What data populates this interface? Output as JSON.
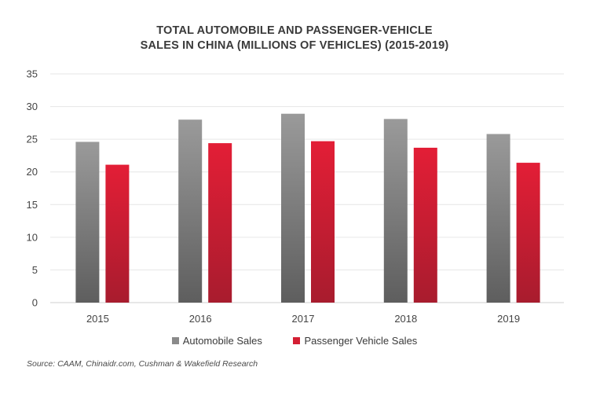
{
  "chart_data": {
    "type": "bar",
    "title_line1": "TOTAL AUTOMOBILE AND PASSENGER-VEHICLE",
    "title_line2": "SALES IN CHINA (MILLIONS OF VEHICLES) (2015-2019)",
    "categories": [
      "2015",
      "2016",
      "2017",
      "2018",
      "2019"
    ],
    "series": [
      {
        "name": "Automobile Sales",
        "values": [
          24.6,
          28.0,
          28.9,
          28.1,
          25.8
        ],
        "color": "#8a8a8a"
      },
      {
        "name": "Passenger Vehicle Sales",
        "values": [
          21.1,
          24.4,
          24.7,
          23.7,
          21.4
        ],
        "color": "#d41f33"
      }
    ],
    "y_ticks": [
      "0",
      "5",
      "10",
      "15",
      "20",
      "25",
      "30",
      "35"
    ],
    "ylim": [
      0,
      35
    ],
    "grid": true,
    "legend_position": "bottom"
  },
  "source": "Source: CAAM, Chinaidr.com, Cushman & Wakefield Research"
}
